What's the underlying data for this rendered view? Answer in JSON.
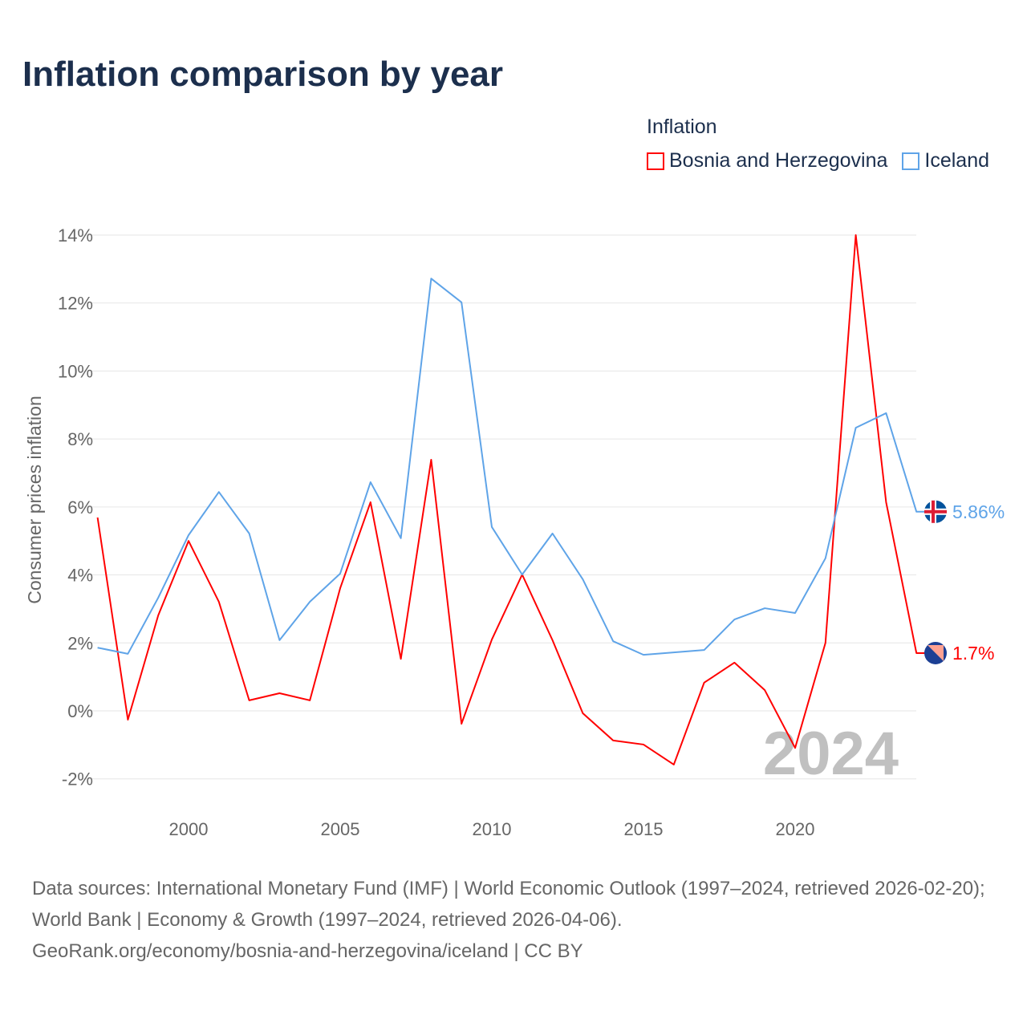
{
  "title": "Inflation comparison by year",
  "legend": {
    "title": "Inflation",
    "items": [
      "Bosnia and Herzegovina",
      "Iceland"
    ]
  },
  "source": {
    "line1": "Data sources: International Monetary Fund (IMF) | World Economic Outlook (1997–2024, retrieved 2026-02-20); World Bank | Economy & Growth (1997–2024, retrieved 2026-04-06).",
    "line2": "GeoRank.org/economy/bosnia-and-herzegovina/iceland | CC BY"
  },
  "chart_data": {
    "type": "line",
    "ylabel": "Consumer prices inflation",
    "xlabel": "",
    "year_watermark": "2024",
    "ylim": [
      -2,
      14
    ],
    "xlim": [
      1997,
      2024
    ],
    "yticks": [
      -2,
      0,
      2,
      4,
      6,
      8,
      10,
      12,
      14
    ],
    "ytick_labels": [
      "-2%",
      "0%",
      "2%",
      "4%",
      "6%",
      "8%",
      "10%",
      "12%",
      "14%"
    ],
    "xticks": [
      2000,
      2005,
      2010,
      2015,
      2020
    ],
    "xtick_labels": [
      "2000",
      "2005",
      "2010",
      "2015",
      "2020"
    ],
    "x": [
      1997,
      1998,
      1999,
      2000,
      2001,
      2002,
      2003,
      2004,
      2005,
      2006,
      2007,
      2008,
      2009,
      2010,
      2011,
      2012,
      2013,
      2014,
      2015,
      2016,
      2017,
      2018,
      2019,
      2020,
      2021,
      2022,
      2023,
      2024
    ],
    "series": [
      {
        "name": "Bosnia and Herzegovina",
        "color": "#ff0000",
        "end_label": "1.7%",
        "values": [
          5.69,
          -0.26,
          2.81,
          5.0,
          3.21,
          0.31,
          0.52,
          0.31,
          3.61,
          6.14,
          1.53,
          7.39,
          -0.38,
          2.1,
          4.01,
          2.08,
          -0.07,
          -0.87,
          -0.99,
          -1.58,
          0.83,
          1.42,
          0.61,
          -1.09,
          2.0,
          14.0,
          6.14,
          1.7
        ]
      },
      {
        "name": "Iceland",
        "color": "#5fa4e8",
        "end_label": "5.86%",
        "values": [
          1.86,
          1.68,
          3.33,
          5.17,
          6.44,
          5.22,
          2.08,
          3.21,
          4.04,
          6.73,
          5.08,
          12.72,
          12.02,
          5.41,
          4.01,
          5.22,
          3.87,
          2.05,
          1.65,
          1.72,
          1.79,
          2.69,
          3.02,
          2.88,
          4.49,
          8.33,
          8.76,
          5.86
        ]
      }
    ]
  }
}
